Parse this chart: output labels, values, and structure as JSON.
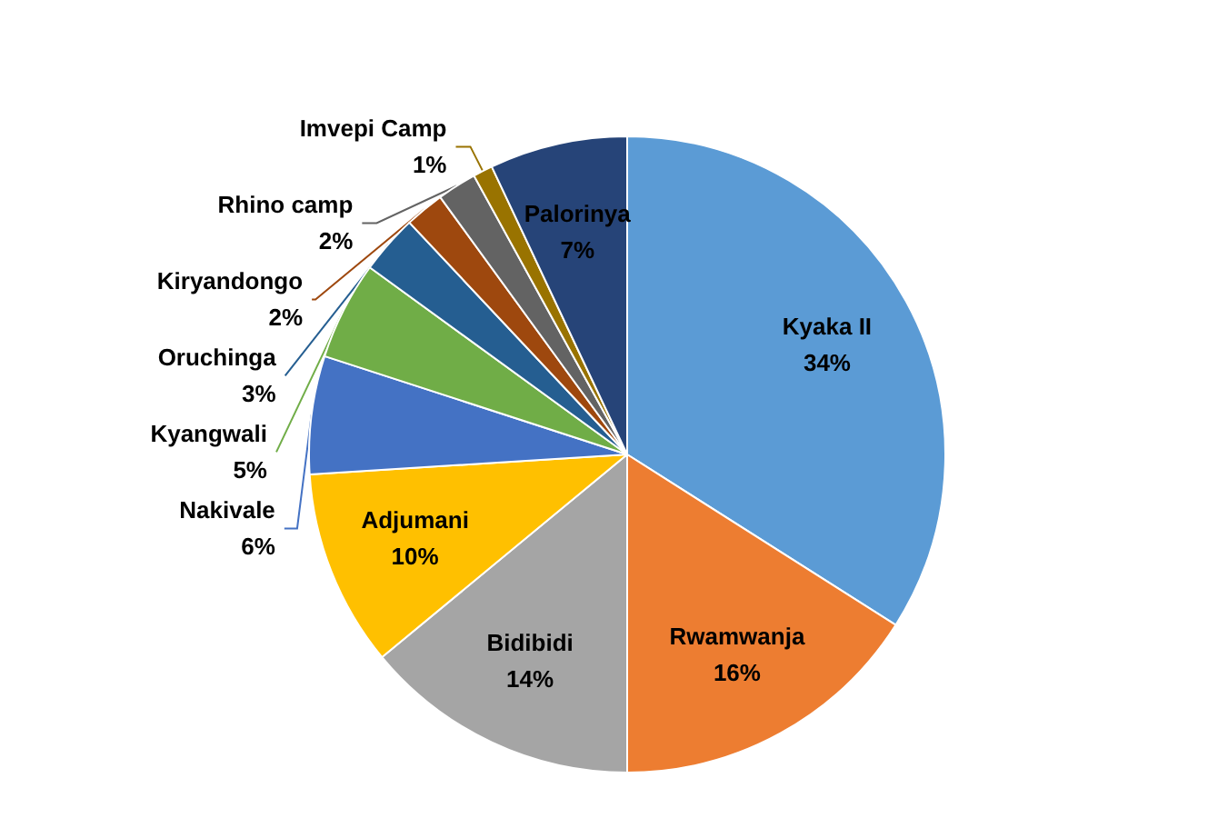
{
  "chart_data": {
    "type": "pie",
    "categories": [
      "Kyaka II",
      "Rwamwanja",
      "Bidibidi",
      "Adjumani",
      "Nakivale",
      "Kyangwali",
      "Oruchinga",
      "Kiryandongo",
      "Rhino camp",
      "Imvepi Camp",
      "Palorinya"
    ],
    "values": [
      34,
      16,
      14,
      10,
      6,
      5,
      3,
      2,
      2,
      1,
      7
    ],
    "value_labels": [
      "34%",
      "16%",
      "14%",
      "10%",
      "6%",
      "5%",
      "3%",
      "2%",
      "2%",
      "1%",
      "7%"
    ],
    "colors": [
      "#5b9bd5",
      "#ed7d31",
      "#a5a5a5",
      "#ffc000",
      "#4472c4",
      "#70ad47",
      "#255e91",
      "#9e480e",
      "#636363",
      "#997300",
      "#264478"
    ],
    "legend": false
  }
}
